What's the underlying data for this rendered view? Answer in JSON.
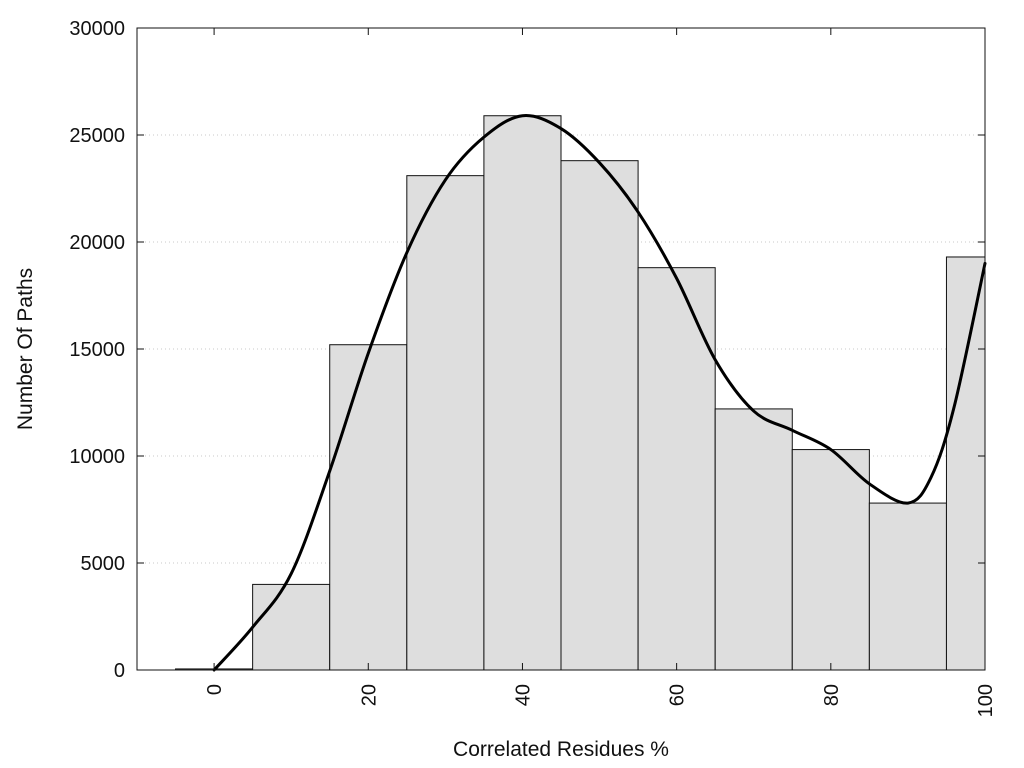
{
  "chart_data": {
    "type": "bar",
    "title": "",
    "xlabel": "Correlated Residues %",
    "ylabel": "Number Of Paths",
    "xlim": [
      -10,
      100
    ],
    "ylim": [
      0,
      30000
    ],
    "grid": true,
    "bin_width": 10,
    "x_ticks": [
      {
        "value": 0,
        "label": "0"
      },
      {
        "value": 20,
        "label": "20"
      },
      {
        "value": 40,
        "label": "40"
      },
      {
        "value": 60,
        "label": "60"
      },
      {
        "value": 80,
        "label": "80"
      },
      {
        "value": 100,
        "label": "100"
      }
    ],
    "y_ticks": [
      {
        "value": 0,
        "label": "0"
      },
      {
        "value": 5000,
        "label": "5000"
      },
      {
        "value": 10000,
        "label": "10000"
      },
      {
        "value": 15000,
        "label": "15000"
      },
      {
        "value": 20000,
        "label": "20000"
      },
      {
        "value": 25000,
        "label": "25000"
      },
      {
        "value": 30000,
        "label": "30000"
      }
    ],
    "x": [
      0,
      10,
      20,
      30,
      40,
      50,
      60,
      70,
      80,
      90,
      100
    ],
    "values": [
      50,
      4000,
      15200,
      23100,
      25900,
      23800,
      18800,
      12200,
      10300,
      7800,
      19300
    ],
    "curve": {
      "x": [
        0,
        5,
        10,
        15,
        20,
        25,
        30,
        35,
        40,
        45,
        50,
        55,
        60,
        65,
        70,
        75,
        80,
        85,
        90,
        93,
        96,
        100
      ],
      "y": [
        0,
        2000,
        4500,
        9300,
        14800,
        19500,
        22900,
        24900,
        25900,
        25300,
        23700,
        21400,
        18300,
        14500,
        12100,
        11200,
        10300,
        8700,
        7800,
        9000,
        12300,
        19000
      ]
    },
    "colors": {
      "bar_fill": "#dedede",
      "bar_stroke": "#111111",
      "curve": "#000000",
      "grid": "#c8c8c8"
    }
  }
}
